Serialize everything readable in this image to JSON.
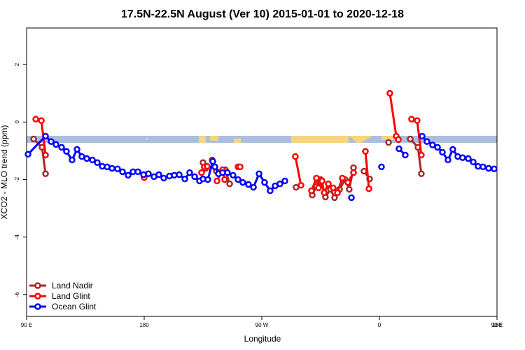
{
  "chart_data": {
    "type": "line",
    "title": "17.5N-22.5N August (Ver 10)   2015-01-01 to 2020-12-18",
    "xlabel": "Longitude",
    "ylabel": "XCO2 - MLO trend (ppm)",
    "xlim": [
      90,
      450
    ],
    "ylim": [
      -6.76,
      3.27
    ],
    "xticks": [
      {
        "value": 90,
        "label": "90 E"
      },
      {
        "value": 180,
        "label": "180"
      },
      {
        "value": 270,
        "label": "90 W"
      },
      {
        "value": 360,
        "label": "0"
      },
      {
        "value": 450,
        "label": "90 E"
      },
      {
        "value": 540,
        "label": "180"
      }
    ],
    "yticks": [
      -6,
      -4,
      -2,
      0,
      2
    ],
    "legend": "bottom-left",
    "series": [
      {
        "name": "Land Nadir",
        "color": "#a52a2a",
        "x": [
          95.4,
          101.8,
          104.5,
          null,
          225.0,
          227.1,
          null,
          232.0,
          235.2,
          null,
          242.1,
          245.4,
          null,
          252.5,
          null,
          296.2,
          null,
          308.6,
          311.8,
          315.0,
          318.7,
          322.5,
          325.7,
          329.5,
          333.7,
          336.9,
          340.2,
          null,
          348.2,
          352.5,
          null,
          367.0,
          null,
          383.6,
          389.5,
          392.1
        ],
        "values": [
          -0.59,
          -0.88,
          -1.8,
          null,
          -1.41,
          -1.61,
          null,
          -1.32,
          -1.71,
          null,
          -1.66,
          -2.15,
          null,
          -1.56,
          null,
          -2.27,
          null,
          -2.54,
          -2.24,
          -2.0,
          -2.61,
          -2.34,
          -2.63,
          -2.34,
          -2.0,
          -2.34,
          -1.59,
          null,
          -1.71,
          -1.98,
          null,
          -0.71,
          null,
          -0.59,
          -0.88,
          -1.8
        ]
      },
      {
        "name": "Land Glint",
        "color": "#ff0000",
        "x": [
          97.0,
          101.3,
          104.5,
          null,
          180.0,
          null,
          223.9,
          226.0,
          228.2,
          null,
          235.7,
          240.0,
          241.6,
          null,
          251.8,
          253.4,
          null,
          295.7,
          300.0,
          null,
          308.0,
          311.8,
          313.4,
          316.1,
          317.7,
          320.9,
          324.6,
          327.9,
          331.6,
          335.9,
          340.2,
          null,
          349.3,
          352.0,
          null,
          368.0,
          372.9,
          374.5,
          null,
          384.6,
          388.9,
          392.1
        ],
        "values": [
          0.1,
          0.05,
          -1.15,
          null,
          -1.93,
          null,
          -1.76,
          -1.56,
          -1.54,
          null,
          -2.05,
          -1.66,
          -2.0,
          null,
          -1.56,
          -1.56,
          null,
          -1.2,
          -2.2,
          null,
          -2.39,
          -1.95,
          -2.29,
          -2.05,
          -2.46,
          -2.15,
          -2.29,
          -2.46,
          -1.95,
          -2.1,
          -1.76,
          null,
          -1.02,
          -2.32,
          null,
          1.0,
          -0.49,
          -0.61,
          null,
          0.1,
          0.05,
          -1.15
        ]
      },
      {
        "name": "Ocean Glint",
        "color": "#0000ff",
        "x": [
          91.1,
          104.5,
          108.8,
          112.5,
          116.8,
          120.5,
          124.8,
          128.6,
          132.3,
          136.1,
          140.4,
          144.1,
          147.9,
          151.6,
          155.4,
          159.6,
          163.4,
          167.7,
          171.4,
          175.2,
          179.5,
          183.2,
          187.5,
          191.2,
          195.0,
          199.3,
          203.0,
          206.8,
          211.1,
          214.8,
          218.6,
          222.3,
          225.0,
          228.7,
          232.5,
          234.1,
          236.8,
          240.0,
          243.7,
          248.0,
          251.8,
          255.5,
          259.8,
          263.6,
          267.9,
          272.1,
          276.4,
          280.2,
          283.9,
          287.7,
          null,
          338.6,
          null,
          361.6,
          null,
          375.0,
          379.8,
          null,
          392.7,
          396.4,
          400.7,
          404.5,
          408.2,
          412.5,
          416.2,
          420.0,
          423.7,
          428.0,
          431.8,
          435.5,
          439.3,
          443.6,
          447.8
        ],
        "values": [
          -1.12,
          -0.49,
          -0.68,
          -0.78,
          -0.88,
          -1.02,
          -1.32,
          -0.95,
          -1.2,
          -1.27,
          -1.32,
          -1.41,
          -1.54,
          -1.56,
          -1.61,
          -1.63,
          -1.73,
          -1.85,
          -1.73,
          -1.73,
          -1.83,
          -1.8,
          -1.9,
          -1.83,
          -1.95,
          -1.88,
          -1.85,
          -1.83,
          -1.98,
          -1.76,
          -1.9,
          -2.05,
          -1.98,
          -2.0,
          -1.37,
          -1.56,
          -1.8,
          -1.76,
          -1.76,
          -1.85,
          -2.0,
          -2.1,
          -2.17,
          -2.27,
          -1.8,
          -2.1,
          -2.39,
          -2.22,
          -2.15,
          -2.05,
          null,
          -2.63,
          null,
          -1.56,
          null,
          -0.93,
          -1.15,
          null,
          -0.49,
          -0.68,
          -0.8,
          -0.88,
          -1.05,
          -1.32,
          -0.95,
          -1.2,
          -1.24,
          -1.27,
          -1.39,
          -1.54,
          -1.56,
          -1.61,
          -1.63
        ]
      }
    ]
  }
}
